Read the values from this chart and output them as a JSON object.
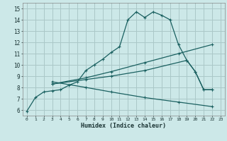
{
  "xlabel": "Humidex (Indice chaleur)",
  "bg_color": "#cce8e8",
  "grid_color": "#aac8c8",
  "line_color": "#1a6060",
  "xlim": [
    -0.5,
    23.5
  ],
  "ylim": [
    5.5,
    15.5
  ],
  "xticks": [
    0,
    1,
    2,
    3,
    4,
    5,
    6,
    7,
    8,
    9,
    10,
    11,
    12,
    13,
    14,
    15,
    16,
    17,
    18,
    19,
    20,
    21,
    22,
    23
  ],
  "yticks": [
    6,
    7,
    8,
    9,
    10,
    11,
    12,
    13,
    14,
    15
  ],
  "curve1_x": [
    0,
    1,
    2,
    3,
    4,
    5,
    6,
    7,
    8,
    9,
    10,
    11,
    12,
    13,
    14,
    15,
    16,
    17,
    18,
    19,
    20,
    21,
    22
  ],
  "curve1_y": [
    5.9,
    7.1,
    7.6,
    7.7,
    7.8,
    8.2,
    8.5,
    9.5,
    10.0,
    10.5,
    11.1,
    11.6,
    14.0,
    14.7,
    14.2,
    14.7,
    14.4,
    14.0,
    11.8,
    10.4,
    9.4,
    7.8,
    7.8
  ],
  "curve2_x": [
    3,
    7,
    10,
    14,
    18,
    22
  ],
  "curve2_y": [
    8.3,
    8.85,
    9.4,
    10.2,
    11.0,
    11.8
  ],
  "curve3_x": [
    3,
    7,
    10,
    14,
    19,
    20,
    21,
    22
  ],
  "curve3_y": [
    8.3,
    8.7,
    9.0,
    9.5,
    10.4,
    9.4,
    7.8,
    7.8
  ],
  "curve4_x": [
    3,
    7,
    10,
    14,
    18,
    22
  ],
  "curve4_y": [
    8.5,
    8.0,
    7.6,
    7.1,
    6.7,
    6.3
  ]
}
